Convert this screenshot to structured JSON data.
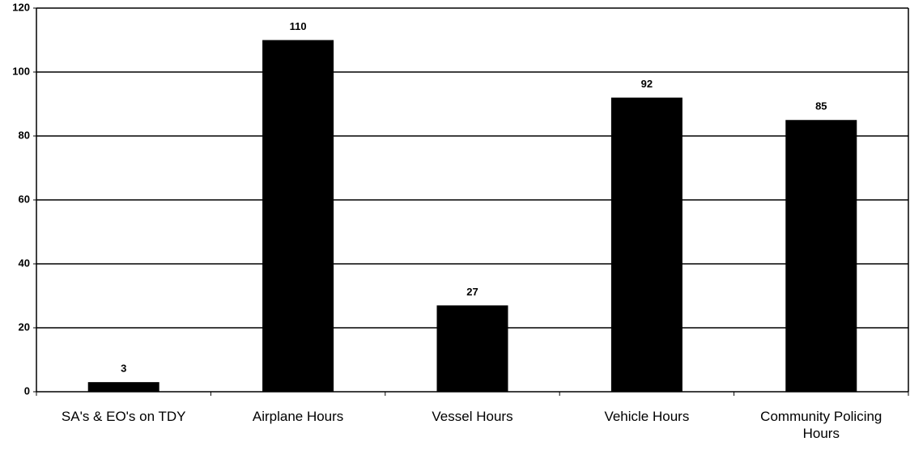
{
  "chart_data": {
    "type": "bar",
    "categories": [
      "SA's & EO's on TDY",
      "Airplane Hours",
      "Vessel Hours",
      "Vehicle Hours",
      "Community Policing Hours"
    ],
    "values": [
      3,
      110,
      27,
      92,
      85
    ],
    "color": "#000000",
    "ylim": [
      0,
      120
    ],
    "yticks": [
      0,
      20,
      40,
      60,
      80,
      100,
      120
    ],
    "grid": true
  }
}
